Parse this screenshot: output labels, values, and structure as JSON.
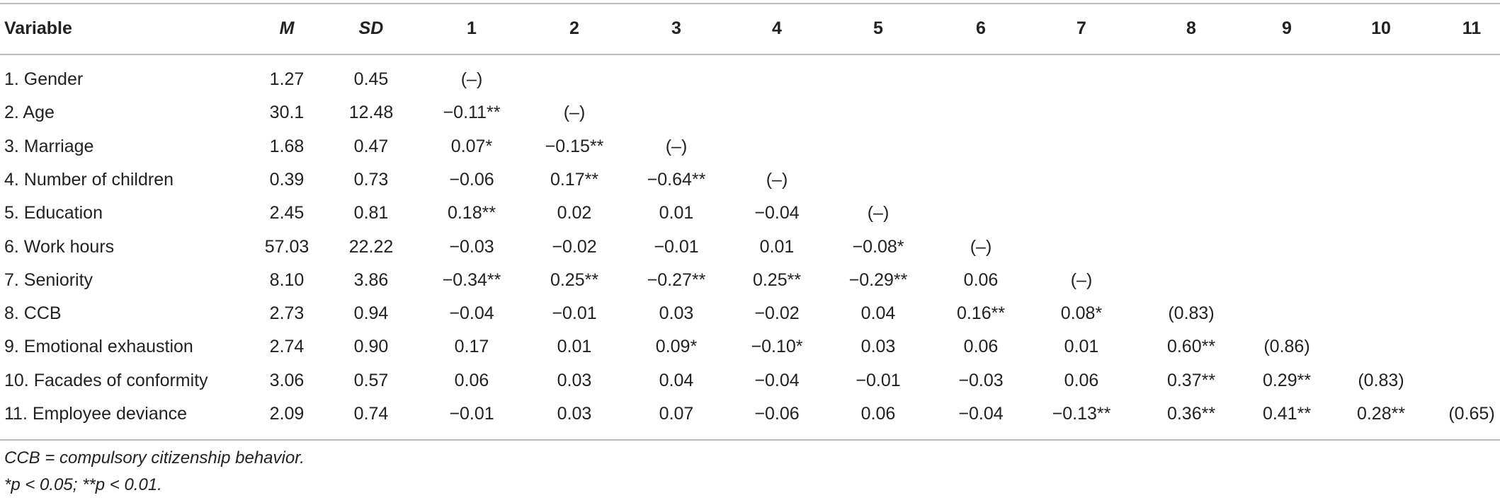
{
  "table": {
    "header": [
      "Variable",
      "M",
      "SD",
      "1",
      "2",
      "3",
      "4",
      "5",
      "6",
      "7",
      "8",
      "9",
      "10",
      "11"
    ],
    "rows": [
      [
        "1. Gender",
        "1.27",
        "0.45",
        "(–)"
      ],
      [
        "2. Age",
        "30.1",
        "12.48",
        "−0.11**",
        "(–)"
      ],
      [
        "3. Marriage",
        "1.68",
        "0.47",
        "0.07*",
        "−0.15**",
        "(–)"
      ],
      [
        "4. Number of children",
        "0.39",
        "0.73",
        "−0.06",
        "0.17**",
        "−0.64**",
        "(–)"
      ],
      [
        "5. Education",
        "2.45",
        "0.81",
        "0.18**",
        "0.02",
        "0.01",
        "−0.04",
        "(–)"
      ],
      [
        "6. Work hours",
        "57.03",
        "22.22",
        "−0.03",
        "−0.02",
        "−0.01",
        "0.01",
        "−0.08*",
        "(–)"
      ],
      [
        "7. Seniority",
        "8.10",
        "3.86",
        "−0.34**",
        "0.25**",
        "−0.27**",
        "0.25**",
        "−0.29**",
        "0.06",
        "(–)"
      ],
      [
        "8. CCB",
        "2.73",
        "0.94",
        "−0.04",
        "−0.01",
        "0.03",
        "−0.02",
        "0.04",
        "0.16**",
        "0.08*",
        "(0.83)"
      ],
      [
        "9. Emotional exhaustion",
        "2.74",
        "0.90",
        "0.17",
        "0.01",
        "0.09*",
        "−0.10*",
        "0.03",
        "0.06",
        "0.01",
        "0.60**",
        "(0.86)"
      ],
      [
        "10. Facades of conformity",
        "3.06",
        "0.57",
        "0.06",
        "0.03",
        "0.04",
        "−0.04",
        "−0.01",
        "−0.03",
        "0.06",
        "0.37**",
        "0.29**",
        "(0.83)"
      ],
      [
        "11. Employee deviance",
        "2.09",
        "0.74",
        "−0.01",
        "0.03",
        "0.07",
        "−0.06",
        "0.06",
        "−0.04",
        "−0.13**",
        "0.36**",
        "0.41**",
        "0.28**",
        "(0.65)"
      ]
    ],
    "notes": [
      "CCB = compulsory citizenship behavior.",
      "*p < 0.05; **p < 0.01."
    ]
  }
}
